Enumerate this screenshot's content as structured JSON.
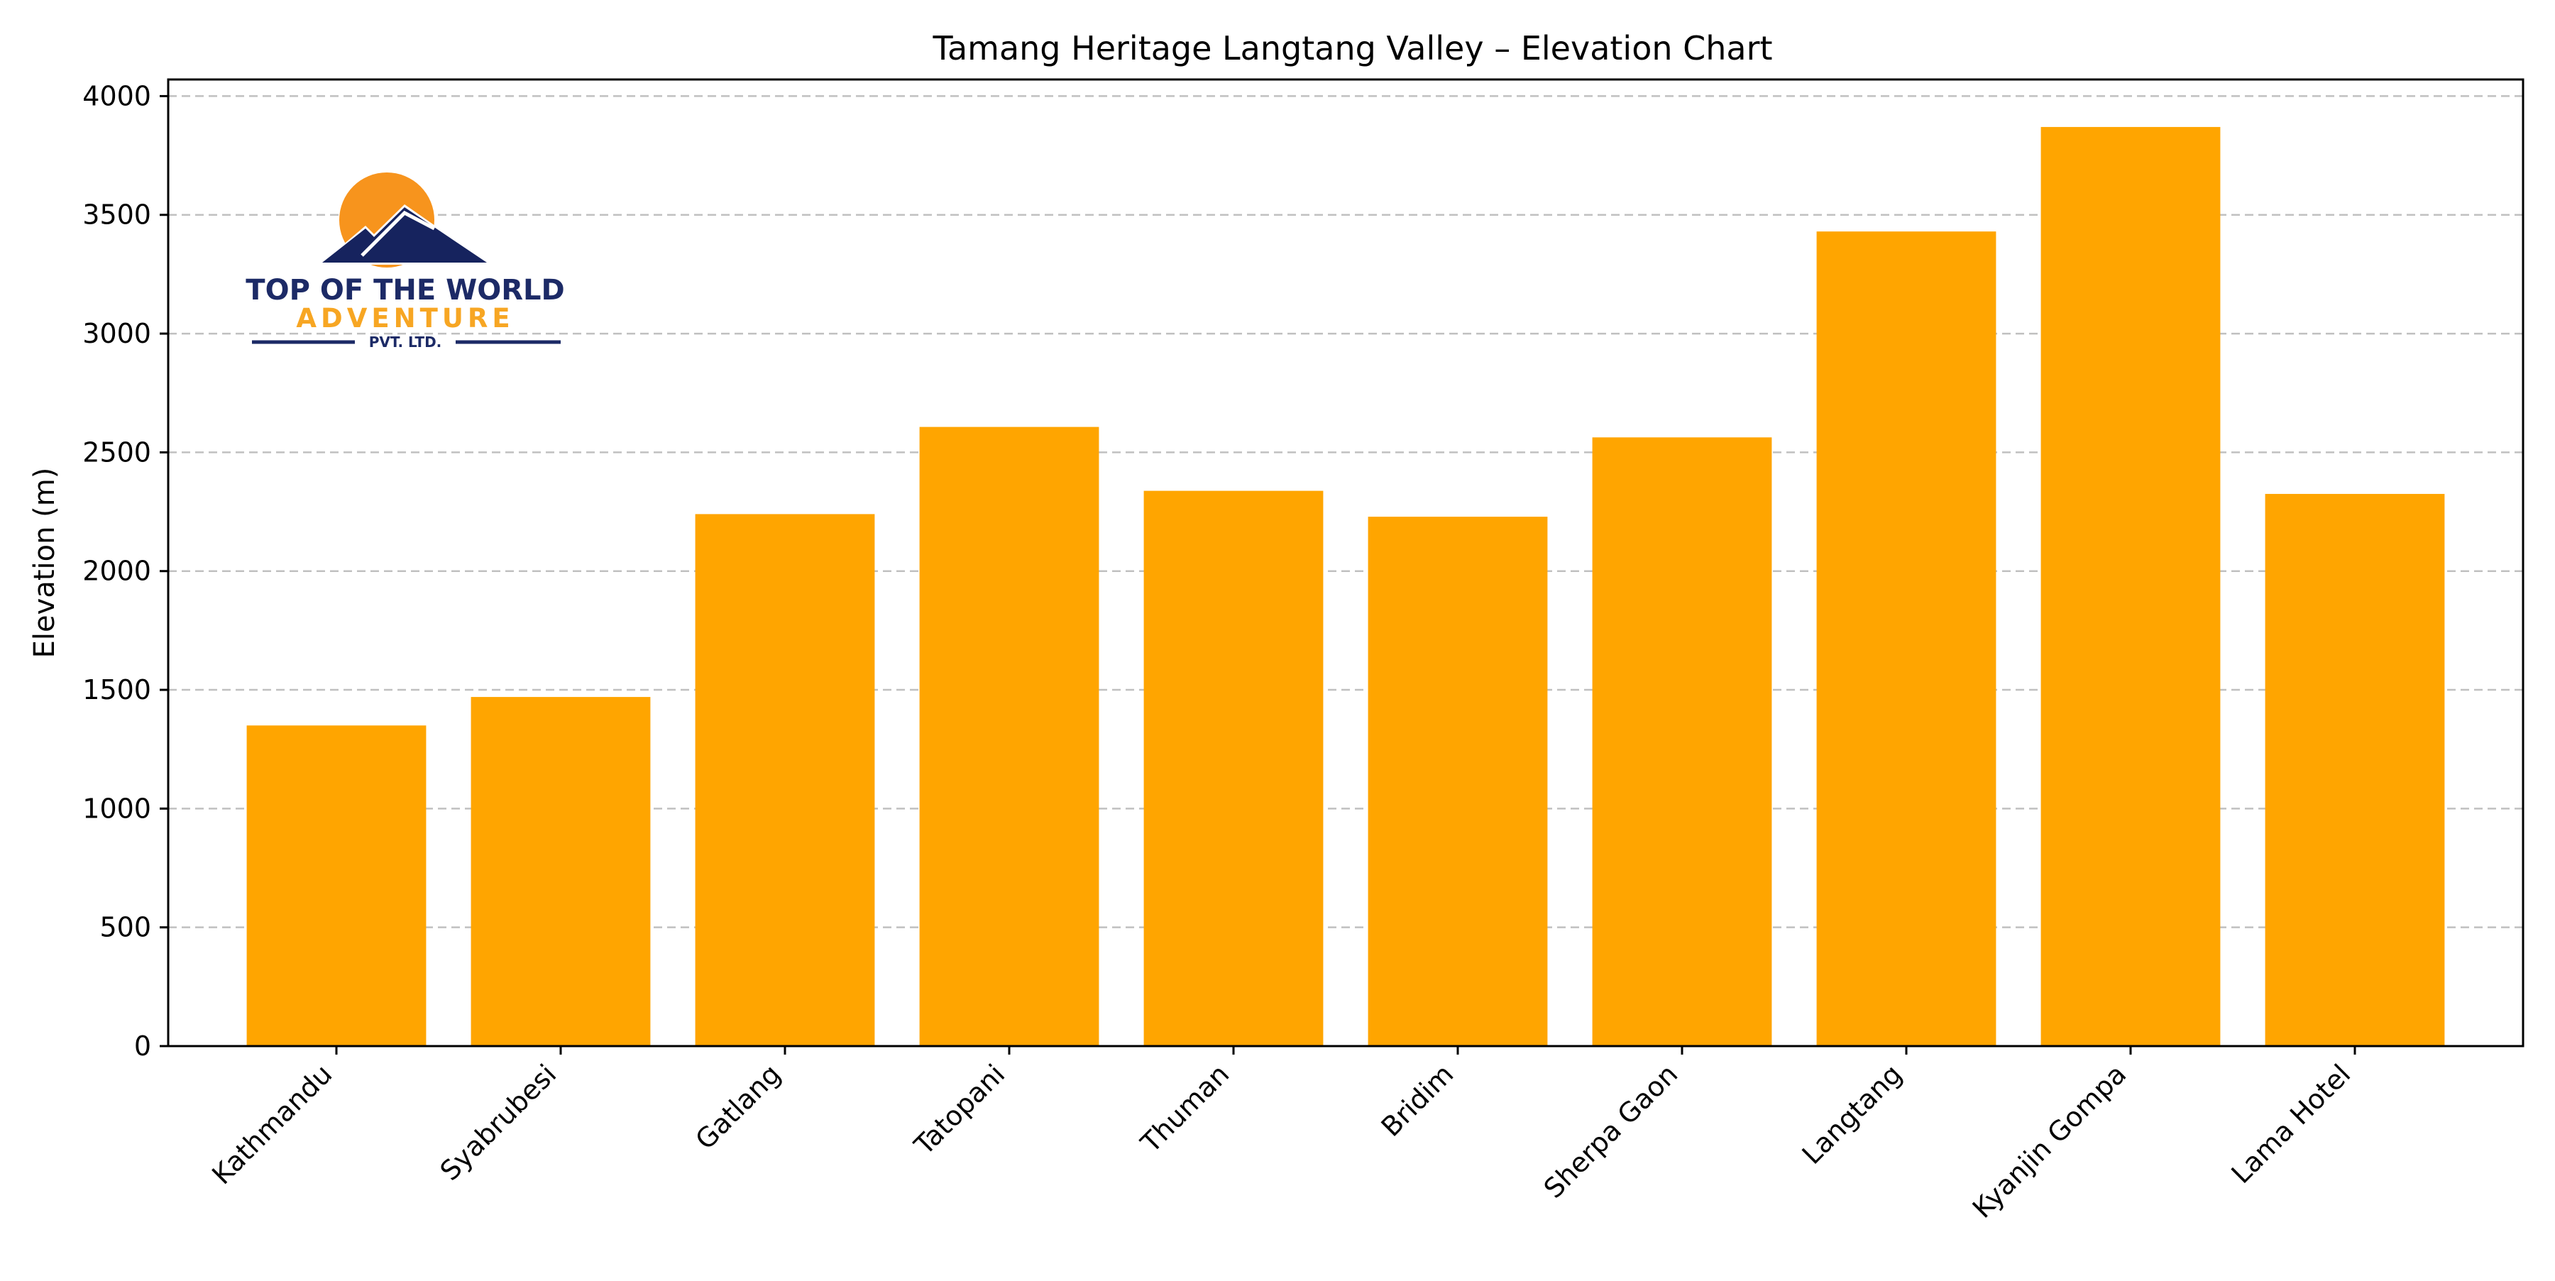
{
  "chart_data": {
    "type": "bar",
    "title": "Tamang Heritage Langtang Valley – Elevation Chart",
    "xlabel": "",
    "ylabel": "Elevation (m)",
    "categories": [
      "Kathmandu",
      "Syabrubesi",
      "Gatlang",
      "Tatopani",
      "Thuman",
      "Bridim",
      "Sherpa Gaon",
      "Langtang",
      "Kyanjin Gompa",
      "Lama Hotel"
    ],
    "values": [
      1350,
      1470,
      2240,
      2607,
      2338,
      2229,
      2563,
      3430,
      3870,
      2325
    ],
    "ylim": [
      0,
      4070
    ],
    "yticks": [
      0,
      500,
      1000,
      1500,
      2000,
      2500,
      3000,
      3500,
      4000
    ],
    "grid": "horizontal-dashed",
    "bar_color": "#ffa500",
    "grid_color": "#c0c0c0"
  },
  "logo": {
    "line1": "Top Of The World",
    "line2": "Adventure",
    "line3": "Pvt. Ltd.",
    "sun_color": "#f7941d",
    "mountain_color": "#16235e"
  }
}
